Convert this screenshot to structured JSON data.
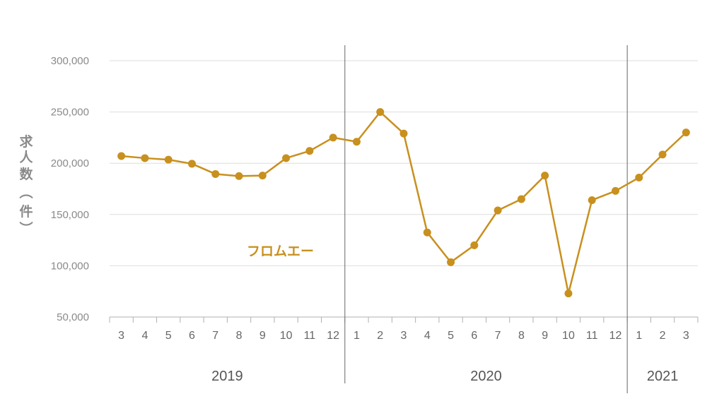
{
  "chart_data": {
    "type": "line",
    "ylabel": "求人数（件）",
    "ylim": [
      50000,
      300000
    ],
    "yticks": [
      50000,
      100000,
      150000,
      200000,
      250000,
      300000
    ],
    "ytick_labels": [
      "50,000",
      "100,000",
      "150,000",
      "200,000",
      "250,000",
      "300,000"
    ],
    "x": [
      "2019-03",
      "2019-04",
      "2019-05",
      "2019-06",
      "2019-07",
      "2019-08",
      "2019-09",
      "2019-10",
      "2019-11",
      "2019-12",
      "2020-01",
      "2020-02",
      "2020-03",
      "2020-04",
      "2020-05",
      "2020-06",
      "2020-07",
      "2020-08",
      "2020-09",
      "2020-10",
      "2020-11",
      "2020-12",
      "2021-01",
      "2021-02",
      "2021-03"
    ],
    "month_labels": [
      "3",
      "4",
      "5",
      "6",
      "7",
      "8",
      "9",
      "10",
      "11",
      "12",
      "1",
      "2",
      "3",
      "4",
      "5",
      "6",
      "7",
      "8",
      "9",
      "10",
      "11",
      "12",
      "1",
      "2",
      "3"
    ],
    "year_groups": [
      {
        "label": "2019",
        "start": 0,
        "end": 9
      },
      {
        "label": "2020",
        "start": 10,
        "end": 21
      },
      {
        "label": "2021",
        "start": 22,
        "end": 24
      }
    ],
    "series": [
      {
        "name": "フロムエー",
        "color": "#c8901e",
        "values": [
          207000,
          205000,
          203500,
          199500,
          189500,
          187500,
          188000,
          205000,
          212000,
          225000,
          221000,
          250000,
          229000,
          132500,
          103500,
          120000,
          154000,
          165000,
          188000,
          73000,
          164000,
          173000,
          186000,
          208500,
          230000
        ]
      }
    ],
    "grid": true,
    "legend": "inline"
  }
}
